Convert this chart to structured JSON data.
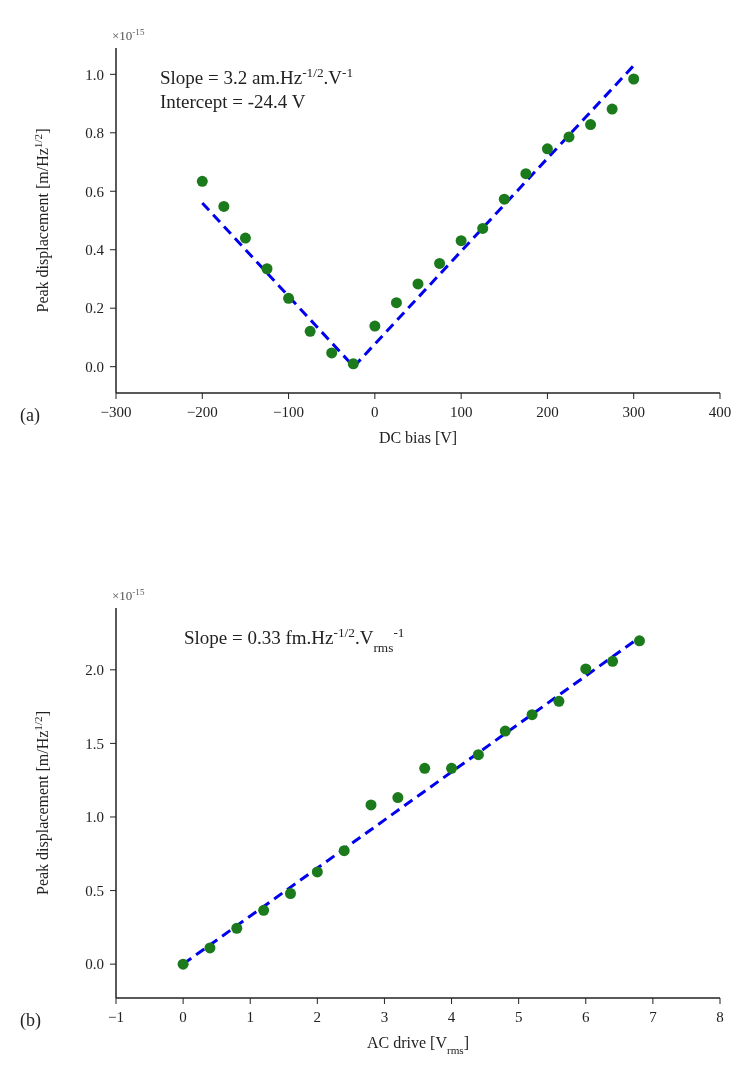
{
  "chart_data": [
    {
      "type": "scatter",
      "xlabel": "DC bias [V]",
      "ylabel": "Peak displacement [m/Hz$^{1/2}$]",
      "annotations": [
        "×10$^{-15}$",
        "Slope = 3.2 am.Hz$^{-1/2}$.V$^{-1}$",
        "Intercept = -24.4 V",
        "(a)"
      ],
      "xlim": [
        -300,
        400
      ],
      "ylim": [
        -0.09,
        1.09
      ],
      "xticks": [
        {
          "value": -300,
          "label": "−300"
        },
        {
          "value": -200,
          "label": "−200"
        },
        {
          "value": -100,
          "label": "−100"
        },
        0,
        100,
        200,
        300,
        400
      ],
      "yticks": [
        {
          "value": 0,
          "label": "0.0"
        },
        {
          "value": 0.2,
          "label": "0.2"
        },
        {
          "value": 0.4,
          "label": "0.4"
        },
        {
          "value": 0.6,
          "label": "0.6"
        },
        {
          "value": 0.8,
          "label": "0.8"
        },
        {
          "value": 1,
          "label": "1.0"
        }
      ],
      "grid": false,
      "series": [
        {
          "color": "#1b7a1b",
          "marker": "circle",
          "x": [
            -200,
            -175,
            -150,
            -125,
            -100,
            -75,
            -50,
            -25,
            0,
            25,
            50,
            75,
            100,
            125,
            150,
            175,
            200,
            225,
            250,
            275,
            300
          ],
          "values": [
            0.634,
            0.548,
            0.44,
            0.335,
            0.234,
            0.121,
            0.047,
            0.01,
            0.139,
            0.219,
            0.283,
            0.353,
            0.431,
            0.473,
            0.573,
            0.66,
            0.745,
            0.786,
            0.828,
            0.881,
            0.984
          ]
        },
        {
          "type": "line",
          "color": "#0000ee",
          "line_style": "dashed",
          "x": [
            -200,
            -24.4
          ],
          "values": [
            0.56,
            0
          ]
        },
        {
          "type": "line",
          "color": "#0000ee",
          "line_style": "dashed",
          "x": [
            -24.4,
            300
          ],
          "values": [
            0,
            1.03
          ]
        }
      ]
    },
    {
      "type": "scatter",
      "xlabel": "AC drive [V$_{rms}$]",
      "ylabel": "Peak displacement [m/Hz$^{1/2}$]",
      "annotations": [
        "×10$^{-15}$",
        "Slope = 0.33 fm.Hz$^{-1/2}$.V$_{rms}$$^{-1}$",
        "(b)"
      ],
      "xlim": [
        -1,
        8
      ],
      "ylim": [
        -0.23,
        2.42
      ],
      "xticks": [
        {
          "value": -1,
          "label": "−1"
        },
        0,
        1,
        2,
        3,
        4,
        5,
        6,
        7,
        8
      ],
      "yticks": [
        {
          "value": 0,
          "label": "0.0"
        },
        {
          "value": 0.5,
          "label": "0.5"
        },
        {
          "value": 1,
          "label": "1.0"
        },
        {
          "value": 1.5,
          "label": "1.5"
        },
        {
          "value": 2,
          "label": "2.0"
        }
      ],
      "grid": false,
      "series": [
        {
          "color": "#1b7a1b",
          "marker": "circle",
          "x": [
            0,
            0.4,
            0.8,
            1.2,
            1.6,
            2.0,
            2.4,
            2.8,
            3.2,
            3.6,
            4.0,
            4.4,
            4.8,
            5.2,
            5.6,
            6.0,
            6.4,
            6.8
          ],
          "values": [
            0,
            0.11,
            0.244,
            0.366,
            0.48,
            0.627,
            0.771,
            1.082,
            1.132,
            1.331,
            1.331,
            1.423,
            1.584,
            1.695,
            1.786,
            2.006,
            2.058,
            2.197
          ]
        },
        {
          "type": "line",
          "color": "#0000ee",
          "line_style": "dashed",
          "x": [
            0,
            6.8
          ],
          "values": [
            0,
            2.22
          ]
        }
      ]
    }
  ]
}
